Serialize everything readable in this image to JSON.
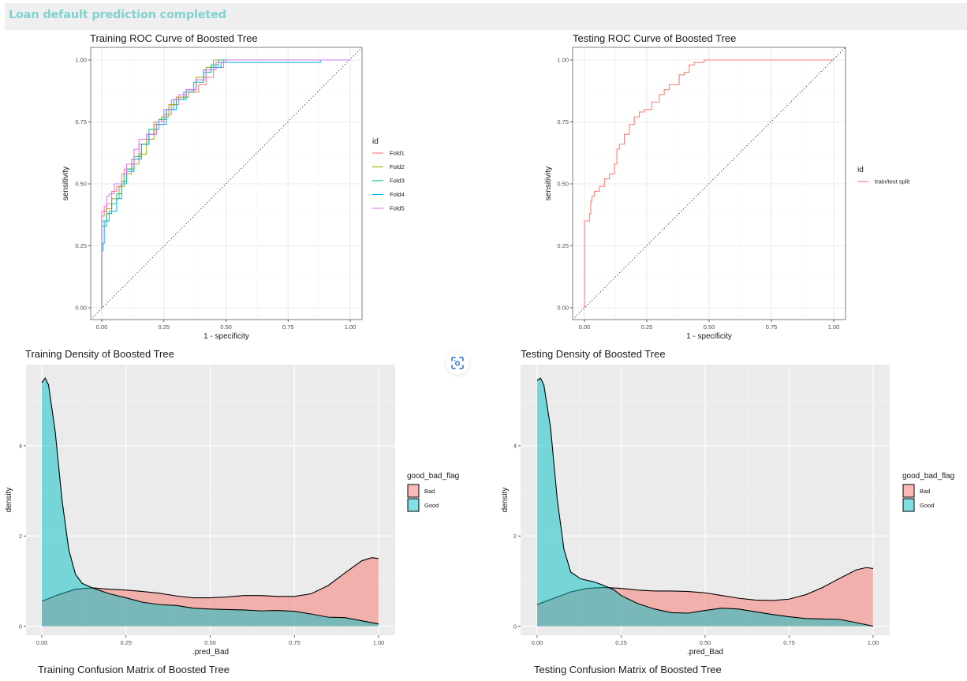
{
  "banner": {
    "text": "Loan default prediction completed",
    "color": "#7fd3d0"
  },
  "screenshot_button": {
    "icon": "camera-capture-icon",
    "color": "#1f6fc5"
  },
  "confusion_titles": {
    "training": "Training Confusion Matrix of Boosted Tree",
    "testing": "Testing Confusion Matrix of Boosted Tree"
  },
  "chart_data": [
    {
      "id": "train_roc",
      "type": "line",
      "title": "Training ROC Curve of Boosted Tree",
      "xlabel": "1 - specificity",
      "ylabel": "sensitivity",
      "xlim": [
        0,
        1
      ],
      "ylim": [
        0,
        1
      ],
      "xticks": [
        "0.00",
        "0.25",
        "0.50",
        "0.75",
        "1.00"
      ],
      "yticks": [
        "0.00",
        "0.25",
        "0.50",
        "0.75",
        "1.00"
      ],
      "theme": "bw",
      "diagonal_reference": true,
      "legend": {
        "title": "id",
        "position": "right"
      },
      "series": [
        {
          "name": "Fold1",
          "color": "#F8766D",
          "points": [
            [
              0,
              0
            ],
            [
              0,
              0.34
            ],
            [
              0.01,
              0.37
            ],
            [
              0.02,
              0.39
            ],
            [
              0.04,
              0.42
            ],
            [
              0.06,
              0.47
            ],
            [
              0.08,
              0.49
            ],
            [
              0.09,
              0.5
            ],
            [
              0.12,
              0.56
            ],
            [
              0.15,
              0.6
            ],
            [
              0.18,
              0.66
            ],
            [
              0.21,
              0.7
            ],
            [
              0.25,
              0.74
            ],
            [
              0.28,
              0.78
            ],
            [
              0.31,
              0.82
            ],
            [
              0.35,
              0.85
            ],
            [
              0.39,
              0.87
            ],
            [
              0.42,
              0.9
            ],
            [
              0.45,
              0.93
            ],
            [
              0.49,
              0.97
            ],
            [
              0.52,
              1.0
            ],
            [
              1,
              1
            ]
          ]
        },
        {
          "name": "Fold2",
          "color": "#A3A500",
          "points": [
            [
              0,
              0
            ],
            [
              0,
              0.32
            ],
            [
              0.02,
              0.35
            ],
            [
              0.04,
              0.4
            ],
            [
              0.07,
              0.44
            ],
            [
              0.09,
              0.49
            ],
            [
              0.12,
              0.54
            ],
            [
              0.15,
              0.58
            ],
            [
              0.18,
              0.62
            ],
            [
              0.21,
              0.68
            ],
            [
              0.24,
              0.75
            ],
            [
              0.27,
              0.77
            ],
            [
              0.3,
              0.82
            ],
            [
              0.34,
              0.85
            ],
            [
              0.38,
              0.88
            ],
            [
              0.42,
              0.93
            ],
            [
              0.45,
              0.97
            ],
            [
              0.48,
              1.0
            ],
            [
              1,
              1
            ]
          ]
        },
        {
          "name": "Fold3",
          "color": "#00BF7D",
          "points": [
            [
              0,
              0
            ],
            [
              0,
              0.33
            ],
            [
              0.02,
              0.33
            ],
            [
              0.04,
              0.38
            ],
            [
              0.06,
              0.42
            ],
            [
              0.08,
              0.46
            ],
            [
              0.1,
              0.51
            ],
            [
              0.13,
              0.56
            ],
            [
              0.16,
              0.61
            ],
            [
              0.19,
              0.66
            ],
            [
              0.23,
              0.72
            ],
            [
              0.26,
              0.76
            ],
            [
              0.29,
              0.8
            ],
            [
              0.33,
              0.84
            ],
            [
              0.37,
              0.87
            ],
            [
              0.41,
              0.91
            ],
            [
              0.44,
              0.95
            ],
            [
              0.47,
              0.98
            ],
            [
              0.5,
              1.0
            ],
            [
              1,
              1
            ]
          ]
        },
        {
          "name": "Fold4",
          "color": "#00B0F6",
          "points": [
            [
              0,
              0
            ],
            [
              0.005,
              0.23
            ],
            [
              0.01,
              0.26
            ],
            [
              0.03,
              0.35
            ],
            [
              0.06,
              0.39
            ],
            [
              0.08,
              0.44
            ],
            [
              0.1,
              0.5
            ],
            [
              0.13,
              0.55
            ],
            [
              0.16,
              0.6
            ],
            [
              0.19,
              0.66
            ],
            [
              0.22,
              0.7
            ],
            [
              0.26,
              0.74
            ],
            [
              0.3,
              0.8
            ],
            [
              0.34,
              0.84
            ],
            [
              0.38,
              0.88
            ],
            [
              0.41,
              0.92
            ],
            [
              0.44,
              0.96
            ],
            [
              0.48,
              0.97
            ],
            [
              0.51,
              0.99
            ],
            [
              0.88,
              0.99
            ],
            [
              0.88,
              1.0
            ],
            [
              1,
              1
            ]
          ]
        },
        {
          "name": "Fold5",
          "color": "#E76BF3",
          "points": [
            [
              0,
              0
            ],
            [
              0,
              0.36
            ],
            [
              0.01,
              0.39
            ],
            [
              0.02,
              0.41
            ],
            [
              0.03,
              0.45
            ],
            [
              0.05,
              0.46
            ],
            [
              0.08,
              0.5
            ],
            [
              0.1,
              0.54
            ],
            [
              0.13,
              0.58
            ],
            [
              0.15,
              0.64
            ],
            [
              0.18,
              0.68
            ],
            [
              0.22,
              0.7
            ],
            [
              0.25,
              0.75
            ],
            [
              0.28,
              0.8
            ],
            [
              0.31,
              0.84
            ],
            [
              0.34,
              0.86
            ],
            [
              0.38,
              0.88
            ],
            [
              0.42,
              0.92
            ],
            [
              0.46,
              0.96
            ],
            [
              0.5,
              0.99
            ],
            [
              0.53,
              1.0
            ],
            [
              1,
              1
            ]
          ]
        }
      ]
    },
    {
      "id": "test_roc",
      "type": "line",
      "title": "Testing ROC Curve of Boosted Tree",
      "xlabel": "1 - specificity",
      "ylabel": "sensitivity",
      "xlim": [
        0,
        1
      ],
      "ylim": [
        0,
        1
      ],
      "xticks": [
        "0.00",
        "0.25",
        "0.50",
        "0.75",
        "1.00"
      ],
      "yticks": [
        "0.00",
        "0.25",
        "0.50",
        "0.75",
        "1.00"
      ],
      "theme": "bw",
      "diagonal_reference": true,
      "legend": {
        "title": "id",
        "position": "right"
      },
      "series": [
        {
          "name": "train/test split",
          "color": "#F8766D",
          "points": [
            [
              0,
              0
            ],
            [
              0,
              0.31
            ],
            [
              0.005,
              0.35
            ],
            [
              0.02,
              0.35
            ],
            [
              0.025,
              0.38
            ],
            [
              0.03,
              0.43
            ],
            [
              0.04,
              0.45
            ],
            [
              0.06,
              0.47
            ],
            [
              0.08,
              0.49
            ],
            [
              0.1,
              0.52
            ],
            [
              0.12,
              0.54
            ],
            [
              0.13,
              0.58
            ],
            [
              0.14,
              0.64
            ],
            [
              0.16,
              0.66
            ],
            [
              0.18,
              0.7
            ],
            [
              0.2,
              0.74
            ],
            [
              0.22,
              0.77
            ],
            [
              0.24,
              0.79
            ],
            [
              0.27,
              0.8
            ],
            [
              0.3,
              0.83
            ],
            [
              0.32,
              0.86
            ],
            [
              0.34,
              0.88
            ],
            [
              0.38,
              0.9
            ],
            [
              0.4,
              0.94
            ],
            [
              0.42,
              0.95
            ],
            [
              0.44,
              0.98
            ],
            [
              0.48,
              0.99
            ],
            [
              0.52,
              1.0
            ],
            [
              1,
              1
            ]
          ]
        }
      ]
    },
    {
      "id": "train_density",
      "type": "area",
      "title": "Training Density of Boosted Tree",
      "xlabel": ".pred_Bad",
      "ylabel": "density",
      "xlim": [
        0,
        1
      ],
      "ylim": [
        -0.2,
        5.8
      ],
      "xticks": [
        "0.00",
        "0.25",
        "0.50",
        "0.75",
        "1.00"
      ],
      "yticks": [
        "0",
        "2",
        "4"
      ],
      "theme": "gray",
      "legend": {
        "title": "good_bad_flag",
        "position": "right"
      },
      "series": [
        {
          "name": "Bad",
          "color": "#F8766D",
          "points": [
            [
              0,
              0.55
            ],
            [
              0.05,
              0.7
            ],
            [
              0.1,
              0.82
            ],
            [
              0.15,
              0.85
            ],
            [
              0.2,
              0.82
            ],
            [
              0.25,
              0.8
            ],
            [
              0.3,
              0.77
            ],
            [
              0.35,
              0.73
            ],
            [
              0.4,
              0.67
            ],
            [
              0.45,
              0.63
            ],
            [
              0.5,
              0.63
            ],
            [
              0.55,
              0.65
            ],
            [
              0.6,
              0.68
            ],
            [
              0.65,
              0.68
            ],
            [
              0.7,
              0.66
            ],
            [
              0.75,
              0.66
            ],
            [
              0.8,
              0.72
            ],
            [
              0.85,
              0.9
            ],
            [
              0.9,
              1.18
            ],
            [
              0.95,
              1.45
            ],
            [
              0.98,
              1.52
            ],
            [
              1,
              1.5
            ]
          ]
        },
        {
          "name": "Good",
          "color": "#00BFC4",
          "points": [
            [
              0,
              5.4
            ],
            [
              0.01,
              5.5
            ],
            [
              0.02,
              5.35
            ],
            [
              0.04,
              4.3
            ],
            [
              0.06,
              2.8
            ],
            [
              0.08,
              1.7
            ],
            [
              0.1,
              1.15
            ],
            [
              0.12,
              0.95
            ],
            [
              0.15,
              0.85
            ],
            [
              0.2,
              0.72
            ],
            [
              0.25,
              0.63
            ],
            [
              0.3,
              0.53
            ],
            [
              0.35,
              0.48
            ],
            [
              0.4,
              0.46
            ],
            [
              0.45,
              0.4
            ],
            [
              0.5,
              0.38
            ],
            [
              0.55,
              0.37
            ],
            [
              0.6,
              0.36
            ],
            [
              0.65,
              0.34
            ],
            [
              0.7,
              0.35
            ],
            [
              0.75,
              0.33
            ],
            [
              0.8,
              0.27
            ],
            [
              0.85,
              0.2
            ],
            [
              0.9,
              0.19
            ],
            [
              0.95,
              0.12
            ],
            [
              1,
              0.05
            ]
          ]
        }
      ]
    },
    {
      "id": "test_density",
      "type": "area",
      "title": "Testing Density of Boosted Tree",
      "xlabel": ".pred_Bad",
      "ylabel": "density",
      "xlim": [
        0,
        1
      ],
      "ylim": [
        -0.2,
        5.8
      ],
      "xticks": [
        "0.00",
        "0.25",
        "0.50",
        "0.75",
        "1.00"
      ],
      "yticks": [
        "0",
        "2",
        "4"
      ],
      "theme": "gray",
      "legend": {
        "title": "good_bad_flag",
        "position": "right"
      },
      "series": [
        {
          "name": "Bad",
          "color": "#F8766D",
          "points": [
            [
              0,
              0.48
            ],
            [
              0.05,
              0.62
            ],
            [
              0.1,
              0.76
            ],
            [
              0.15,
              0.84
            ],
            [
              0.2,
              0.86
            ],
            [
              0.25,
              0.84
            ],
            [
              0.3,
              0.8
            ],
            [
              0.35,
              0.78
            ],
            [
              0.4,
              0.78
            ],
            [
              0.45,
              0.77
            ],
            [
              0.5,
              0.74
            ],
            [
              0.55,
              0.68
            ],
            [
              0.6,
              0.62
            ],
            [
              0.65,
              0.58
            ],
            [
              0.7,
              0.57
            ],
            [
              0.75,
              0.6
            ],
            [
              0.8,
              0.7
            ],
            [
              0.85,
              0.86
            ],
            [
              0.9,
              1.06
            ],
            [
              0.95,
              1.25
            ],
            [
              0.98,
              1.3
            ],
            [
              1,
              1.28
            ]
          ]
        },
        {
          "name": "Good",
          "color": "#00BFC4",
          "points": [
            [
              0,
              5.45
            ],
            [
              0.01,
              5.5
            ],
            [
              0.02,
              5.35
            ],
            [
              0.04,
              4.4
            ],
            [
              0.06,
              2.8
            ],
            [
              0.08,
              1.7
            ],
            [
              0.1,
              1.2
            ],
            [
              0.13,
              1.05
            ],
            [
              0.17,
              0.98
            ],
            [
              0.2,
              0.9
            ],
            [
              0.23,
              0.8
            ],
            [
              0.25,
              0.68
            ],
            [
              0.3,
              0.5
            ],
            [
              0.35,
              0.38
            ],
            [
              0.4,
              0.3
            ],
            [
              0.45,
              0.29
            ],
            [
              0.5,
              0.35
            ],
            [
              0.55,
              0.4
            ],
            [
              0.6,
              0.38
            ],
            [
              0.65,
              0.32
            ],
            [
              0.7,
              0.26
            ],
            [
              0.75,
              0.21
            ],
            [
              0.8,
              0.17
            ],
            [
              0.85,
              0.16
            ],
            [
              0.9,
              0.15
            ],
            [
              0.95,
              0.08
            ],
            [
              1,
              0.0
            ]
          ]
        }
      ]
    }
  ]
}
